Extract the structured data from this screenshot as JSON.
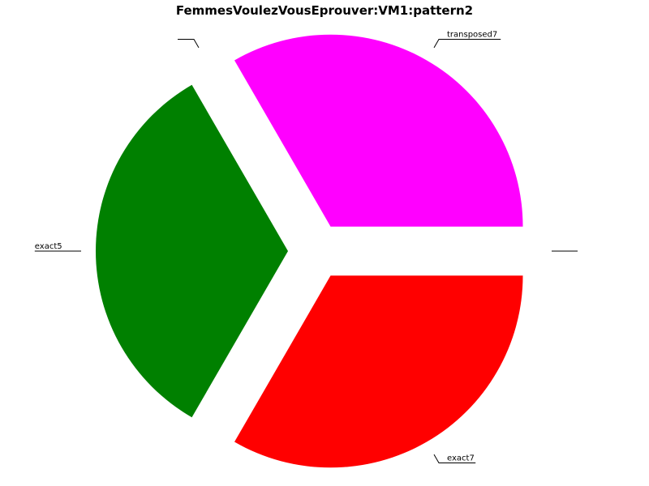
{
  "chart_data": {
    "type": "pie",
    "title": "FemmesVoulezVousEprouver:VM1:pattern2",
    "slices": [
      {
        "label": "",
        "value": 0,
        "color": "#ffffff"
      },
      {
        "label": "transposed7",
        "value": 1,
        "color": "#ff00ff"
      },
      {
        "label": "",
        "value": 0,
        "color": "#ffffff"
      },
      {
        "label": "exact5",
        "value": 1,
        "color": "#008000"
      },
      {
        "label": "exact7",
        "value": 1,
        "color": "#ff0000"
      }
    ],
    "legend": "none",
    "grid": false
  }
}
